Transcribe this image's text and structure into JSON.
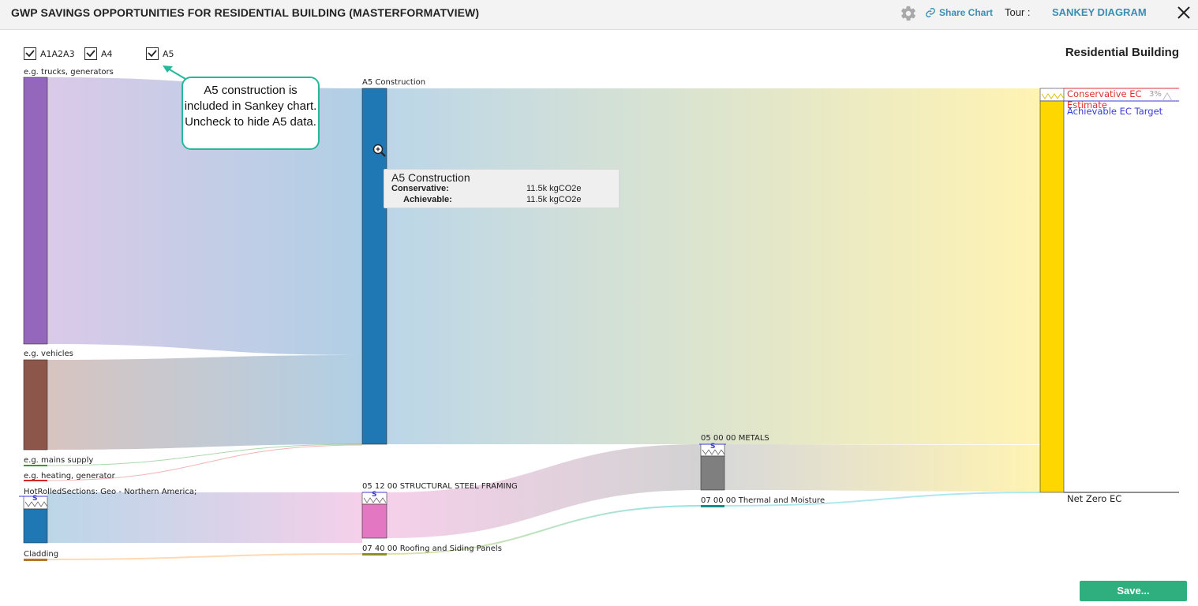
{
  "header": {
    "title": "GWP SAVINGS OPPORTUNITIES FOR RESIDENTIAL BUILDING (MASTERFORMATVIEW)",
    "share_label": "Share Chart",
    "tour_label": "Tour :",
    "tour_link": "SANKEY DIAGRAM"
  },
  "filters": [
    {
      "label": "A1A2A3",
      "checked": true
    },
    {
      "label": "A4",
      "checked": true
    },
    {
      "label": "A5",
      "checked": true
    }
  ],
  "callout": {
    "text": "A5 construction is included in Sankey chart. Uncheck to hide A5 data."
  },
  "tooltip": {
    "title": "A5 Construction",
    "conservative_label": "Conservative:",
    "conservative_value": "11.5k kgCO2e",
    "achievable_label": "Achievable:",
    "achievable_value": "11.5k kgCO2e"
  },
  "chart_data": {
    "type": "sankey",
    "title": "Residential Building",
    "nodes": [
      {
        "label": "e.g. trucks, generators",
        "color": "#9467bd"
      },
      {
        "label": "e.g. vehicles",
        "color": "#8c564b"
      },
      {
        "label": "e.g. mains supply",
        "color": "#2ca02c"
      },
      {
        "label": "e.g. heating, generator",
        "color": "#d62728"
      },
      {
        "label": "HotRolledSections: Geo - Northern America;",
        "color": "#1f77b4"
      },
      {
        "label": "Cladding",
        "color": "#bcbd22"
      },
      {
        "label": "A5 Construction",
        "color": "#1f77b4"
      },
      {
        "label": "05 12 00 STRUCTURAL STEEL FRAMING",
        "color": "#e377c2"
      },
      {
        "label": "07 40 00 Roofing and Siding Panels",
        "color": "#bcbd22"
      },
      {
        "label": "05 00 00 METALS",
        "color": "#7f7f7f"
      },
      {
        "label": "07 00 00 Thermal and Moisture",
        "color": "#17becf"
      },
      {
        "label": "Residential Building",
        "color": "#ffd700"
      }
    ],
    "targets": [
      {
        "label": "Conservative EC Estimate",
        "color": "#e03131"
      },
      {
        "label": "Achievable EC Target",
        "color": "#3b3bd6"
      },
      {
        "label": "Net Zero EC",
        "color": "#222222"
      }
    ],
    "percent_label": "3%",
    "marker_symbol": "S"
  },
  "save_label": "Save..."
}
